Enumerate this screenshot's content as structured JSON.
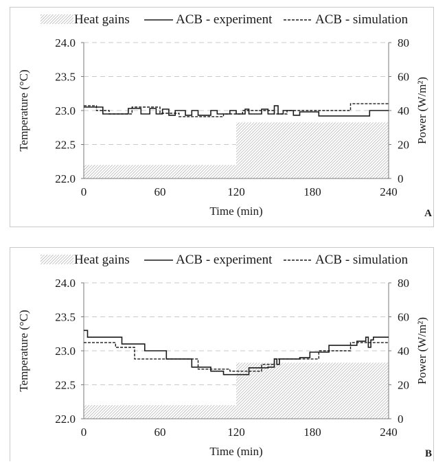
{
  "legend": {
    "heat": "Heat gains",
    "experiment": "ACB - experiment",
    "simulation": "ACB - simulation"
  },
  "chart_data": [
    {
      "type": "line",
      "panel_label": "A",
      "xlabel": "Time (min)",
      "ylabel": "Temperature (°C)",
      "y2label": "Power (W/m²)",
      "xlim": [
        0,
        240
      ],
      "ylim": [
        22.0,
        24.0
      ],
      "y2lim": [
        0,
        80
      ],
      "x_ticks": [
        "0",
        "60",
        "120",
        "180",
        "240"
      ],
      "y_ticks": [
        "22.0",
        "22.5",
        "23.0",
        "23.5",
        "24.0"
      ],
      "y2_ticks": [
        "0",
        "20",
        "40",
        "60",
        "80"
      ],
      "grid": true,
      "legend_position": "top",
      "heat_gains": [
        {
          "x0": 0,
          "x1": 120,
          "value": 8
        },
        {
          "x0": 120,
          "x1": 240,
          "value": 33
        }
      ],
      "series": [
        {
          "name": "ACB - experiment",
          "style": "solid",
          "x": [
            0,
            15,
            15,
            35,
            35,
            45,
            45,
            52,
            52,
            57,
            57,
            62,
            62,
            67,
            67,
            72,
            72,
            80,
            80,
            85,
            85,
            90,
            90,
            100,
            100,
            105,
            105,
            115,
            115,
            120,
            120,
            127,
            127,
            130,
            130,
            140,
            140,
            145,
            145,
            150,
            150,
            153,
            153,
            157,
            157,
            165,
            165,
            170,
            170,
            180,
            180,
            185,
            185,
            195,
            195,
            225,
            225,
            240
          ],
          "y": [
            23.05,
            23.05,
            22.95,
            22.95,
            23.03,
            23.03,
            22.95,
            22.95,
            23.03,
            23.03,
            22.95,
            22.95,
            23.02,
            23.02,
            22.93,
            22.93,
            23.0,
            23.0,
            22.93,
            22.93,
            23.0,
            23.0,
            22.93,
            22.93,
            23.0,
            23.0,
            22.95,
            22.95,
            23.0,
            23.0,
            22.95,
            22.95,
            23.02,
            23.02,
            22.95,
            22.95,
            23.02,
            23.02,
            22.95,
            22.95,
            23.07,
            23.07,
            22.95,
            22.95,
            23.0,
            23.0,
            22.93,
            22.93,
            22.98,
            22.98,
            22.98,
            22.98,
            22.92,
            22.92,
            22.92,
            22.92,
            23.0,
            23.0
          ]
        },
        {
          "name": "ACB - simulation",
          "style": "dashed",
          "x": [
            0,
            10,
            10,
            20,
            20,
            38,
            38,
            60,
            60,
            75,
            75,
            110,
            110,
            125,
            125,
            150,
            150,
            160,
            160,
            180,
            180,
            210,
            210,
            240
          ],
          "y": [
            23.07,
            23.07,
            23.0,
            23.0,
            22.95,
            22.95,
            23.05,
            23.05,
            22.96,
            22.96,
            22.91,
            22.91,
            22.95,
            22.95,
            23.0,
            23.0,
            22.95,
            22.95,
            23.0,
            23.0,
            23.0,
            23.0,
            23.1,
            23.1
          ]
        }
      ]
    },
    {
      "type": "line",
      "panel_label": "B",
      "xlabel": "Time (min)",
      "ylabel": "Temperature (°C)",
      "y2label": "Power (W/m²)",
      "xlim": [
        0,
        240
      ],
      "ylim": [
        22.0,
        24.0
      ],
      "y2lim": [
        0,
        80
      ],
      "x_ticks": [
        "0",
        "60",
        "120",
        "180",
        "240"
      ],
      "y_ticks": [
        "22.0",
        "22.5",
        "23.0",
        "23.5",
        "24.0"
      ],
      "y2_ticks": [
        "0",
        "20",
        "40",
        "60",
        "80"
      ],
      "grid": true,
      "legend_position": "top",
      "heat_gains": [
        {
          "x0": 0,
          "x1": 120,
          "value": 8
        },
        {
          "x0": 120,
          "x1": 240,
          "value": 33
        }
      ],
      "series": [
        {
          "name": "ACB - experiment",
          "style": "solid",
          "x": [
            0,
            3,
            3,
            30,
            30,
            48,
            48,
            65,
            65,
            85,
            85,
            100,
            100,
            110,
            110,
            130,
            130,
            145,
            145,
            150,
            150,
            152,
            152,
            154,
            154,
            170,
            170,
            178,
            178,
            193,
            193,
            215,
            215,
            222,
            222,
            224,
            224,
            226,
            226,
            228,
            228,
            240
          ],
          "y": [
            23.3,
            23.3,
            23.2,
            23.2,
            23.1,
            23.1,
            23.0,
            23.0,
            22.88,
            22.88,
            22.76,
            22.76,
            22.7,
            22.7,
            22.65,
            22.65,
            22.75,
            22.75,
            22.76,
            22.76,
            22.88,
            22.88,
            22.8,
            22.8,
            22.88,
            22.88,
            22.9,
            22.9,
            22.98,
            22.98,
            23.08,
            23.08,
            23.14,
            23.14,
            23.2,
            23.2,
            23.05,
            23.05,
            23.16,
            23.16,
            23.2,
            23.2
          ]
        },
        {
          "name": "ACB - simulation",
          "style": "dashed",
          "x": [
            0,
            25,
            25,
            40,
            40,
            65,
            65,
            90,
            90,
            115,
            115,
            140,
            140,
            150,
            150,
            185,
            185,
            210,
            210,
            240
          ],
          "y": [
            23.12,
            23.12,
            23.05,
            23.05,
            22.88,
            22.88,
            22.88,
            22.88,
            22.73,
            22.73,
            22.7,
            22.7,
            22.8,
            22.8,
            22.88,
            22.88,
            23.0,
            23.0,
            23.12,
            23.12
          ]
        }
      ]
    }
  ]
}
